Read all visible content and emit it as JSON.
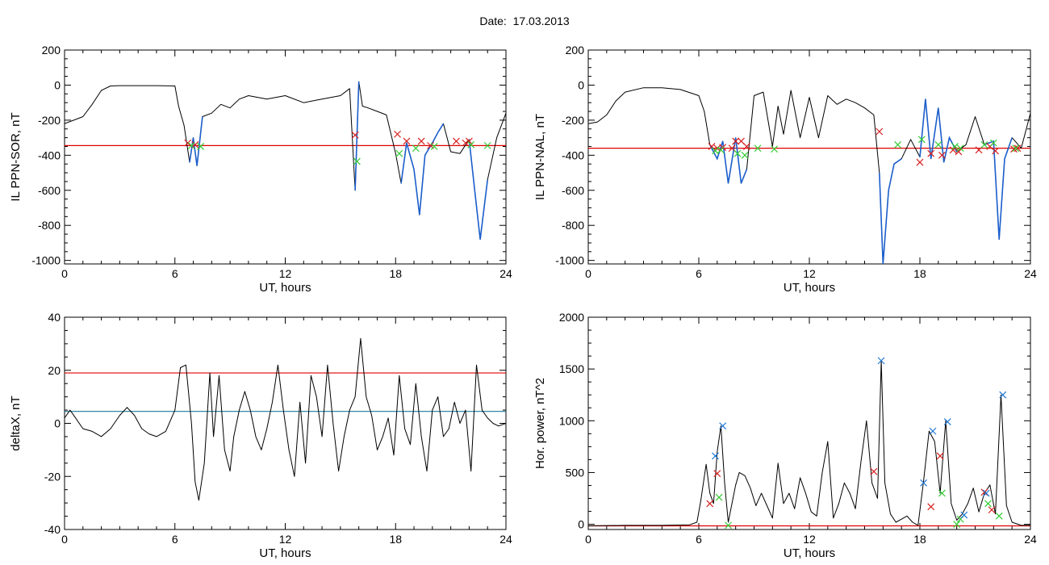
{
  "figure": {
    "title": "Date:  17.03.2013"
  },
  "colors": {
    "curve": "#000000",
    "threshold": "#e00000",
    "baseline": "#1a7a9a",
    "highlight": "#1c5fcc",
    "marker_red": "#d62020",
    "marker_green": "#33cc33",
    "marker_blue": "#1f77d4"
  },
  "chart_data": [
    {
      "id": "p1",
      "type": "line",
      "xlabel": "UT, hours",
      "ylabel": "IL PPN-SOR, nT",
      "xlim": [
        0,
        24
      ],
      "ylim": [
        -1020,
        200
      ],
      "xticks": [
        0,
        6,
        12,
        18,
        24
      ],
      "xtick_labels": [
        "0",
        "6",
        "12",
        "18",
        "24"
      ],
      "yticks": [
        -1000,
        -800,
        -600,
        -400,
        -200,
        0,
        200
      ],
      "ytick_labels": [
        "-1000",
        "-800",
        "-600",
        "-400",
        "-200",
        "0",
        "200"
      ],
      "threshold": -345,
      "x": [
        0,
        0.5,
        1,
        1.5,
        2,
        2.5,
        3,
        4,
        5,
        6,
        6.2,
        6.5,
        6.8,
        7.0,
        7.2,
        7.5,
        8,
        8.5,
        9,
        9.5,
        10,
        11,
        12,
        13,
        14,
        15,
        15.5,
        15.8,
        16.0,
        16.2,
        16.5,
        17,
        17.5,
        18,
        18.3,
        18.6,
        19.0,
        19.3,
        19.6,
        20.0,
        20.3,
        20.6,
        21,
        21.5,
        22,
        22.3,
        22.6,
        23,
        23.5,
        24
      ],
      "y": [
        -220,
        -200,
        -180,
        -110,
        -30,
        -5,
        -3,
        -3,
        -3,
        -5,
        -120,
        -230,
        -440,
        -300,
        -460,
        -180,
        -160,
        -110,
        -130,
        -80,
        -60,
        -80,
        -60,
        -100,
        -80,
        -60,
        -20,
        -600,
        20,
        -120,
        -130,
        -150,
        -170,
        -390,
        -560,
        -330,
        -480,
        -740,
        -400,
        -330,
        -270,
        -220,
        -380,
        -390,
        -310,
        -600,
        -880,
        -540,
        -300,
        -160
      ],
      "highlights": [
        [
          6.6,
          7.6
        ],
        [
          15.8,
          16.1
        ],
        [
          18.1,
          20.6
        ],
        [
          21.6,
          23.3
        ]
      ],
      "markers_red": [
        [
          6.7,
          -330
        ],
        [
          7.1,
          -340
        ],
        [
          15.8,
          -285
        ],
        [
          18.1,
          -280
        ],
        [
          18.6,
          -320
        ],
        [
          19.4,
          -320
        ],
        [
          19.9,
          -345
        ],
        [
          21.3,
          -320
        ],
        [
          21.8,
          -330
        ],
        [
          22.0,
          -320
        ]
      ],
      "markers_green": [
        [
          6.9,
          -345
        ],
        [
          7.4,
          -350
        ],
        [
          15.9,
          -435
        ],
        [
          18.2,
          -390
        ],
        [
          19.1,
          -360
        ],
        [
          20.1,
          -350
        ],
        [
          22.1,
          -340
        ],
        [
          23.0,
          -345
        ]
      ]
    },
    {
      "id": "p2",
      "type": "line",
      "xlabel": "UT, hours",
      "ylabel": "IL PPN-NAL, nT",
      "xlim": [
        0,
        24
      ],
      "ylim": [
        -1020,
        200
      ],
      "xticks": [
        0,
        6,
        12,
        18,
        24
      ],
      "xtick_labels": [
        "0",
        "6",
        "12",
        "18",
        "24"
      ],
      "yticks": [
        -1000,
        -800,
        -600,
        -400,
        -200,
        0,
        200
      ],
      "ytick_labels": [
        "-1000",
        "-800",
        "-600",
        "-400",
        "-200",
        "0",
        "200"
      ],
      "threshold": -360,
      "x": [
        0,
        0.5,
        1,
        1.5,
        2,
        3,
        4,
        5,
        6,
        6.3,
        6.6,
        7.0,
        7.3,
        7.6,
        8.0,
        8.3,
        8.6,
        9.0,
        9.5,
        10,
        10.3,
        10.6,
        11,
        11.5,
        12,
        12.5,
        13,
        13.5,
        14,
        14.5,
        15,
        15.5,
        15.8,
        16.0,
        16.3,
        16.6,
        17,
        17.5,
        18,
        18.3,
        18.6,
        19.0,
        19.3,
        19.6,
        20,
        20.5,
        21,
        21.5,
        22,
        22.3,
        22.6,
        23,
        23.5,
        24
      ],
      "y": [
        -220,
        -210,
        -170,
        -90,
        -40,
        -15,
        -15,
        -25,
        -60,
        -150,
        -340,
        -420,
        -320,
        -560,
        -300,
        -560,
        -480,
        -60,
        -40,
        -350,
        -120,
        -280,
        -30,
        -300,
        -70,
        -300,
        -60,
        -110,
        -80,
        -100,
        -130,
        -170,
        -500,
        -1020,
        -600,
        -450,
        -420,
        -310,
        -410,
        -80,
        -420,
        -130,
        -440,
        -300,
        -380,
        -340,
        -180,
        -340,
        -320,
        -880,
        -420,
        -300,
        -360,
        -160
      ],
      "highlights": [
        [
          6.5,
          8.8
        ],
        [
          15.7,
          17.0
        ],
        [
          17.8,
          20.4
        ],
        [
          21.2,
          23.4
        ]
      ],
      "markers_red": [
        [
          6.7,
          -350
        ],
        [
          7.0,
          -360
        ],
        [
          7.3,
          -355
        ],
        [
          7.8,
          -360
        ],
        [
          8.0,
          -320
        ],
        [
          8.3,
          -320
        ],
        [
          8.6,
          -350
        ],
        [
          15.8,
          -265
        ],
        [
          18.0,
          -440
        ],
        [
          18.6,
          -390
        ],
        [
          19.2,
          -400
        ],
        [
          19.8,
          -370
        ],
        [
          20.1,
          -380
        ],
        [
          21.2,
          -370
        ],
        [
          21.8,
          -350
        ],
        [
          22.1,
          -375
        ],
        [
          23.1,
          -365
        ],
        [
          23.3,
          -360
        ]
      ],
      "markers_green": [
        [
          6.9,
          -375
        ],
        [
          7.2,
          -370
        ],
        [
          8.1,
          -390
        ],
        [
          8.5,
          -400
        ],
        [
          9.2,
          -360
        ],
        [
          10.1,
          -365
        ],
        [
          16.8,
          -340
        ],
        [
          18.1,
          -310
        ],
        [
          19.0,
          -340
        ],
        [
          19.9,
          -350
        ],
        [
          20.2,
          -360
        ],
        [
          21.5,
          -340
        ],
        [
          22.0,
          -330
        ],
        [
          23.2,
          -360
        ]
      ]
    },
    {
      "id": "p3",
      "type": "line",
      "xlabel": "UT, hours",
      "ylabel": "deltaX, nT",
      "xlim": [
        0,
        24
      ],
      "ylim": [
        -40,
        40
      ],
      "xticks": [
        0,
        6,
        12,
        18,
        24
      ],
      "xtick_labels": [
        "0",
        "6",
        "12",
        "18",
        "24"
      ],
      "yticks": [
        -40,
        -20,
        0,
        20,
        40
      ],
      "ytick_labels": [
        "-40",
        "-20",
        "0",
        "20",
        "40"
      ],
      "threshold": 19,
      "baseline": 4.5,
      "x": [
        0,
        0.3,
        0.6,
        1.0,
        1.5,
        2.0,
        2.5,
        3.0,
        3.4,
        3.8,
        4.2,
        4.6,
        5.0,
        5.5,
        6.0,
        6.3,
        6.6,
        6.9,
        7.1,
        7.3,
        7.6,
        7.9,
        8.1,
        8.4,
        8.7,
        9.0,
        9.2,
        9.5,
        9.8,
        10.1,
        10.4,
        10.7,
        11.0,
        11.3,
        11.6,
        11.9,
        12.2,
        12.5,
        12.8,
        13.1,
        13.4,
        13.7,
        14.0,
        14.3,
        14.6,
        14.9,
        15.2,
        15.5,
        15.8,
        16.1,
        16.4,
        16.7,
        17.0,
        17.3,
        17.6,
        17.9,
        18.2,
        18.5,
        18.8,
        19.1,
        19.4,
        19.7,
        20.0,
        20.3,
        20.6,
        20.9,
        21.2,
        21.5,
        21.8,
        22.1,
        22.4,
        22.7,
        23.0,
        23.3,
        23.6,
        24.0
      ],
      "y": [
        2,
        5,
        2,
        -2,
        -3,
        -5,
        -2,
        3,
        6,
        3,
        -2,
        -4,
        -5,
        -3,
        5,
        21,
        22,
        0,
        -22,
        -29,
        -15,
        19,
        -5,
        18,
        -10,
        -18,
        -5,
        5,
        12,
        5,
        -5,
        -10,
        -2,
        8,
        22,
        5,
        -10,
        -20,
        8,
        -15,
        18,
        10,
        -5,
        22,
        0,
        -18,
        -5,
        5,
        10,
        32,
        10,
        3,
        -10,
        -5,
        2,
        -12,
        18,
        -2,
        -8,
        15,
        -5,
        -18,
        5,
        10,
        -5,
        -2,
        8,
        0,
        5,
        -18,
        22,
        5,
        2,
        0,
        -1,
        0
      ]
    },
    {
      "id": "p4",
      "type": "line",
      "xlabel": "UT, hours",
      "ylabel": "Hor. power, nT^2",
      "xlim": [
        0,
        24
      ],
      "ylim": [
        -50,
        2000
      ],
      "xticks": [
        0,
        6,
        12,
        18,
        24
      ],
      "xtick_labels": [
        "0",
        "6",
        "12",
        "18",
        "24"
      ],
      "yticks": [
        0,
        500,
        1000,
        1500,
        2000
      ],
      "ytick_labels": [
        "0",
        "500",
        "1000",
        "1500",
        "2000"
      ],
      "threshold": -15,
      "x": [
        0,
        2,
        4,
        5.5,
        5.9,
        6.1,
        6.4,
        6.6,
        6.8,
        7.0,
        7.2,
        7.4,
        7.6,
        7.8,
        8.0,
        8.2,
        8.5,
        8.8,
        9.1,
        9.4,
        9.7,
        10.0,
        10.3,
        10.6,
        10.9,
        11.2,
        11.5,
        11.8,
        12.1,
        12.4,
        12.7,
        13.0,
        13.3,
        13.6,
        13.9,
        14.2,
        14.5,
        14.8,
        15.1,
        15.4,
        15.7,
        15.9,
        16.1,
        16.4,
        16.7,
        17.0,
        17.3,
        17.6,
        17.9,
        18.2,
        18.5,
        18.8,
        19.1,
        19.4,
        19.7,
        20.0,
        20.3,
        20.6,
        20.9,
        21.2,
        21.5,
        21.8,
        22.1,
        22.4,
        22.7,
        23.0,
        23.5,
        24.0
      ],
      "y": [
        -15,
        -10,
        -10,
        -5,
        20,
        220,
        580,
        300,
        200,
        700,
        950,
        400,
        20,
        200,
        380,
        500,
        470,
        350,
        180,
        300,
        180,
        60,
        590,
        200,
        300,
        150,
        450,
        300,
        120,
        80,
        500,
        800,
        60,
        200,
        400,
        300,
        150,
        600,
        1000,
        400,
        250,
        1580,
        400,
        100,
        20,
        50,
        80,
        20,
        -10,
        420,
        900,
        800,
        300,
        1000,
        200,
        40,
        100,
        200,
        350,
        120,
        300,
        380,
        100,
        1250,
        180,
        20,
        -10,
        -10
      ],
      "markers_blue": [
        [
          6.9,
          660
        ],
        [
          7.3,
          950
        ],
        [
          15.9,
          1580
        ],
        [
          18.2,
          400
        ],
        [
          18.7,
          900
        ],
        [
          19.5,
          990
        ],
        [
          20.4,
          90
        ],
        [
          21.6,
          300
        ],
        [
          22.5,
          1250
        ]
      ],
      "markers_red": [
        [
          6.6,
          200
        ],
        [
          7.0,
          490
        ],
        [
          15.5,
          510
        ],
        [
          18.6,
          170
        ],
        [
          19.1,
          660
        ],
        [
          21.5,
          310
        ],
        [
          21.9,
          140
        ]
      ],
      "markers_green": [
        [
          7.1,
          260
        ],
        [
          7.6,
          -10
        ],
        [
          19.2,
          300
        ],
        [
          20.0,
          0
        ],
        [
          20.2,
          50
        ],
        [
          21.7,
          200
        ],
        [
          22.3,
          80
        ]
      ]
    }
  ]
}
